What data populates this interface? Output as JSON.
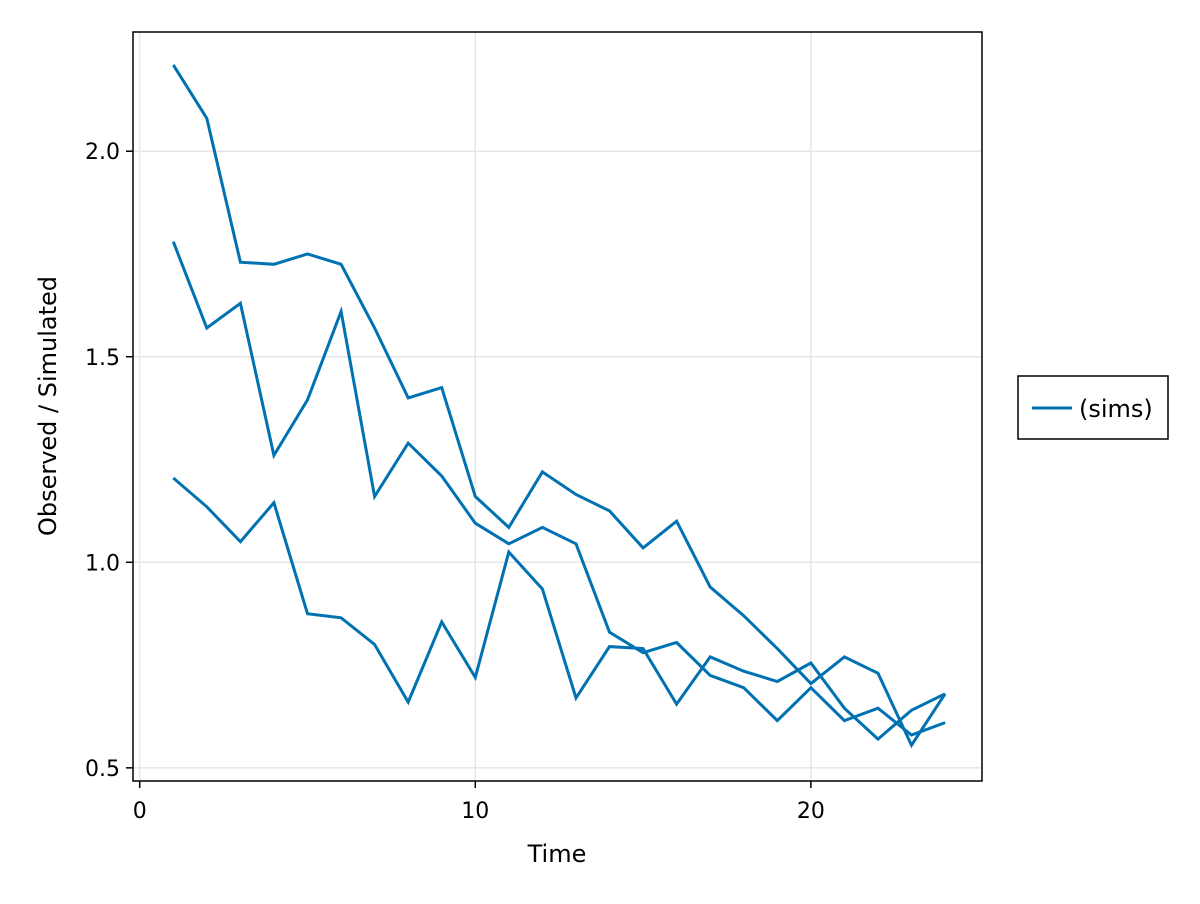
{
  "chart_data": {
    "type": "line",
    "title": "",
    "xlabel": "Time",
    "ylabel": "Observed / Simulated",
    "xlim": [
      -0.2,
      25.1
    ],
    "ylim": [
      0.468,
      2.29
    ],
    "x_ticks": [
      0,
      10,
      20
    ],
    "x_tick_labels": [
      "0",
      "10",
      "20"
    ],
    "y_ticks": [
      0.5,
      1.0,
      1.5,
      2.0
    ],
    "y_tick_labels": [
      "0.5",
      "1.0",
      "1.5",
      "2.0"
    ],
    "grid": true,
    "legend_position": "right",
    "legend": [
      {
        "label": "(sims)",
        "color": "#0072b2"
      }
    ],
    "line_color": "#0072b2",
    "x": [
      1,
      2,
      3,
      4,
      5,
      6,
      7,
      8,
      9,
      10,
      11,
      12,
      13,
      14,
      15,
      16,
      17,
      18,
      19,
      20,
      21,
      22,
      23,
      24
    ],
    "series": [
      {
        "values": [
          2.21,
          2.08,
          1.73,
          1.725,
          1.75,
          1.725,
          1.57,
          1.4,
          1.425,
          1.16,
          1.085,
          1.22,
          1.165,
          1.125,
          1.035,
          1.1,
          0.94,
          0.87,
          0.79,
          0.705,
          0.77,
          0.73,
          0.555,
          0.68
        ]
      },
      {
        "values": [
          1.78,
          1.57,
          1.63,
          1.26,
          1.395,
          1.61,
          1.16,
          1.29,
          1.21,
          1.095,
          1.045,
          1.085,
          1.045,
          0.83,
          0.78,
          0.805,
          0.725,
          0.695,
          0.615,
          0.695,
          0.615,
          0.645,
          0.58,
          0.61
        ]
      },
      {
        "values": [
          1.205,
          1.135,
          1.05,
          1.145,
          0.875,
          0.865,
          0.8,
          0.66,
          0.855,
          0.72,
          1.025,
          0.935,
          0.67,
          0.795,
          0.79,
          0.655,
          0.77,
          0.735,
          0.71,
          0.755,
          0.645,
          0.57,
          0.64,
          0.68
        ]
      }
    ]
  }
}
